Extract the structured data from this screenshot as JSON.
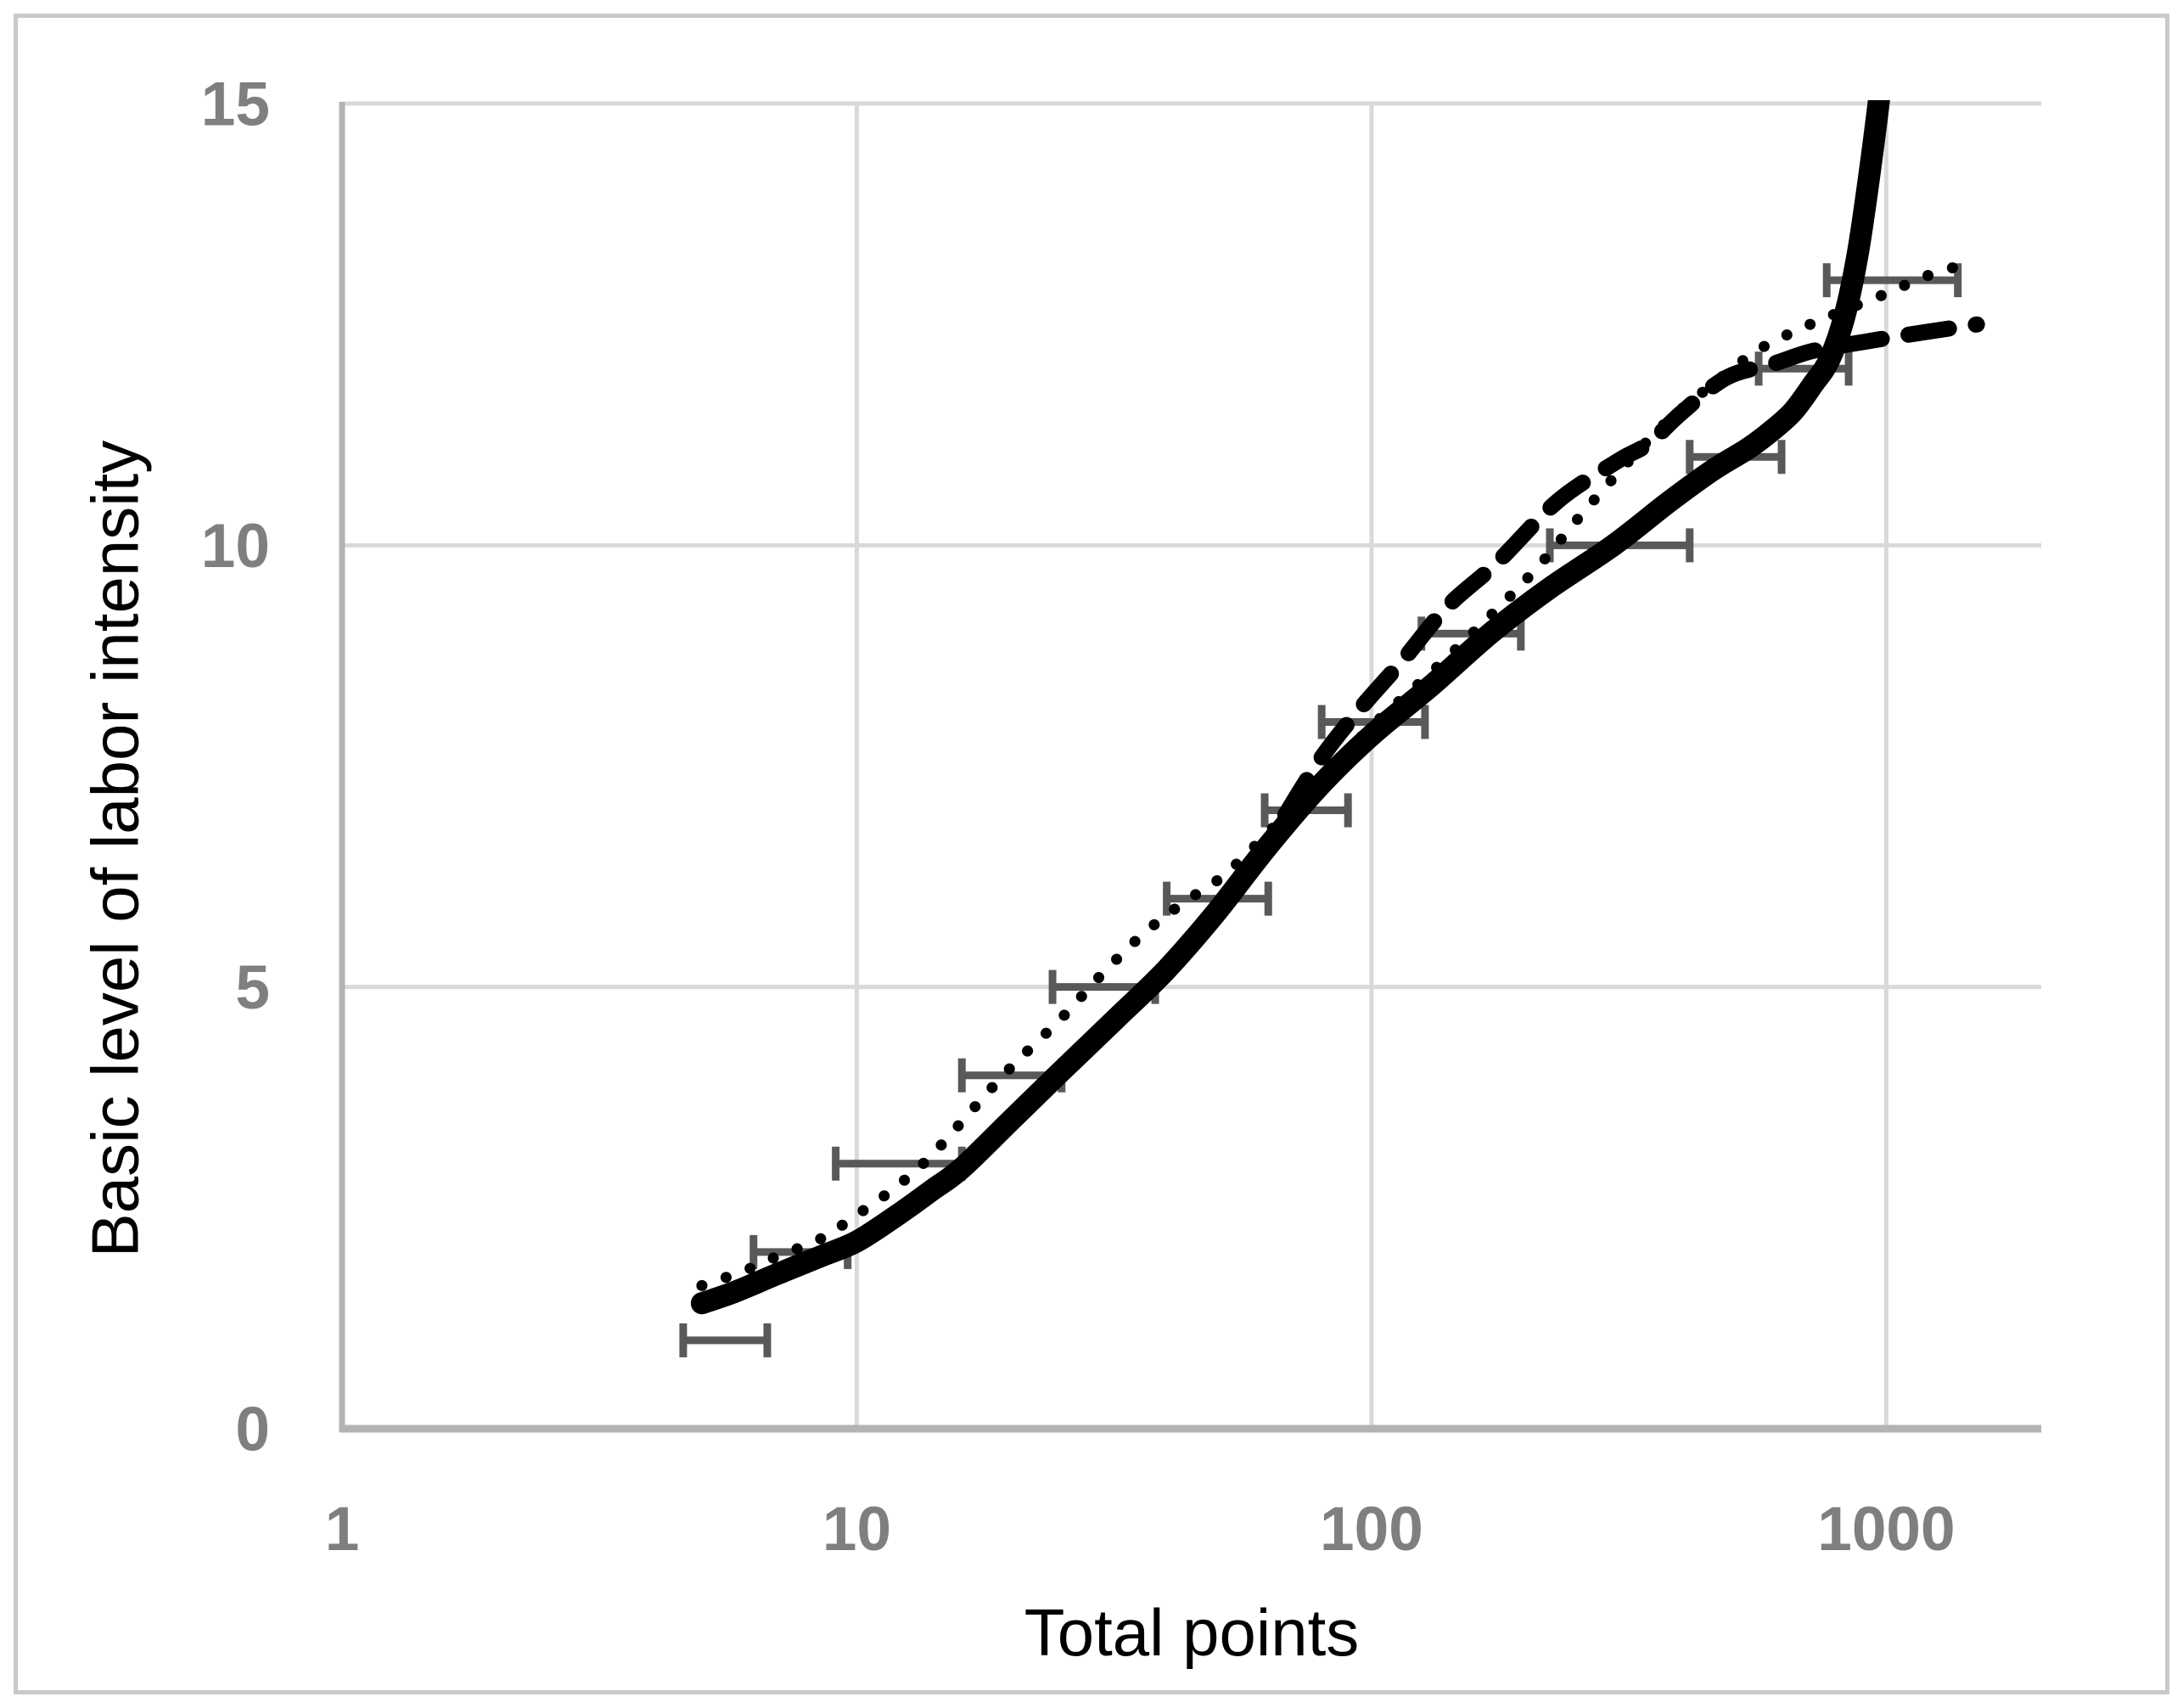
{
  "figure": {
    "background": "#ffffff",
    "frame_color": "#c9c9c9"
  },
  "colors": {
    "gridline": "#d9d9d9",
    "axis_line": "#b3b3b3",
    "tick_label": "#7f7f7f",
    "axis_title": "#000000",
    "error_bar": "#595959",
    "series_line": "#000000"
  },
  "chart_data": {
    "type": "line",
    "title": "",
    "xlabel": "Total points",
    "ylabel": "Basic level of labor intensity",
    "x_axis": {
      "label": "Total points",
      "scale": "log",
      "min": 1,
      "max": 2000,
      "ticks": [
        1,
        10,
        100,
        1000
      ],
      "tick_labels": [
        "1",
        "10",
        "100",
        "1000"
      ]
    },
    "y_axis": {
      "label": "Basic level of labor intensity",
      "scale": "linear",
      "min": 0,
      "max": 15,
      "ticks": [
        0,
        5,
        10,
        15
      ],
      "tick_labels": [
        "0",
        "5",
        "10",
        "15"
      ]
    },
    "grid": true,
    "legend_position": "none",
    "series": [
      {
        "name": "dashed-curve",
        "style": "dashed",
        "color": "#000000",
        "width": 19,
        "points": [
          [
            68,
            6.95
          ],
          [
            80,
            7.6
          ],
          [
            95,
            8.15
          ],
          [
            115,
            8.7
          ],
          [
            140,
            9.3
          ],
          [
            175,
            9.8
          ],
          [
            230,
            10.5
          ],
          [
            300,
            10.95
          ],
          [
            345,
            11.15
          ],
          [
            400,
            11.5
          ],
          [
            490,
            11.9
          ],
          [
            600,
            12.05
          ],
          [
            720,
            12.2
          ],
          [
            900,
            12.3
          ],
          [
            1150,
            12.4
          ],
          [
            1500,
            12.5
          ]
        ]
      },
      {
        "name": "dotted-curve",
        "style": "dotted",
        "color": "#000000",
        "width": 13,
        "points": [
          [
            5,
            1.62
          ],
          [
            6,
            1.78
          ],
          [
            7,
            1.95
          ],
          [
            8.5,
            2.15
          ],
          [
            10,
            2.42
          ],
          [
            12,
            2.75
          ],
          [
            14,
            3.1
          ],
          [
            17,
            3.65
          ],
          [
            20,
            4.1
          ],
          [
            25,
            4.65
          ],
          [
            30,
            5.15
          ],
          [
            36,
            5.6
          ],
          [
            43,
            5.95
          ],
          [
            50,
            6.2
          ],
          [
            56,
            6.45
          ],
          [
            63,
            6.75
          ],
          [
            80,
            7.35
          ],
          [
            100,
            7.95
          ],
          [
            130,
            8.55
          ],
          [
            170,
            9.2
          ],
          [
            210,
            9.75
          ],
          [
            256,
            10.35
          ],
          [
            310,
            10.9
          ],
          [
            375,
            11.4
          ],
          [
            455,
            11.8
          ],
          [
            560,
            12.2
          ],
          [
            680,
            12.45
          ],
          [
            820,
            12.65
          ],
          [
            1000,
            12.85
          ],
          [
            1200,
            13.05
          ],
          [
            1500,
            13.22
          ]
        ]
      },
      {
        "name": "solid-thick-curve",
        "style": "solid",
        "color": "#000000",
        "width": 26,
        "points": [
          [
            5,
            1.42
          ],
          [
            5.8,
            1.55
          ],
          [
            7,
            1.75
          ],
          [
            8.5,
            1.95
          ],
          [
            10,
            2.12
          ],
          [
            12,
            2.42
          ],
          [
            14,
            2.7
          ],
          [
            16,
            2.95
          ],
          [
            20,
            3.5
          ],
          [
            25,
            4.05
          ],
          [
            32,
            4.65
          ],
          [
            40,
            5.2
          ],
          [
            50,
            5.85
          ],
          [
            63,
            6.6
          ],
          [
            80,
            7.3
          ],
          [
            100,
            7.85
          ],
          [
            130,
            8.4
          ],
          [
            170,
            9.0
          ],
          [
            220,
            9.5
          ],
          [
            295,
            10.0
          ],
          [
            380,
            10.5
          ],
          [
            460,
            10.85
          ],
          [
            540,
            11.1
          ],
          [
            600,
            11.3
          ],
          [
            660,
            11.52
          ],
          [
            720,
            11.82
          ],
          [
            775,
            12.1
          ],
          [
            830,
            12.6
          ],
          [
            880,
            13.3
          ],
          [
            930,
            14.25
          ],
          [
            975,
            15.2
          ],
          [
            1000,
            15.8
          ]
        ]
      }
    ],
    "error_bars": {
      "orientation": "horizontal",
      "color": "#595959",
      "items": [
        {
          "level": 1,
          "x_min": 4.6,
          "x_max": 6.7
        },
        {
          "level": 2,
          "x_min": 6.3,
          "x_max": 9.6
        },
        {
          "level": 3,
          "x_min": 9.1,
          "x_max": 16
        },
        {
          "level": 4,
          "x_min": 16,
          "x_max": 25
        },
        {
          "level": 5,
          "x_min": 24,
          "x_max": 38
        },
        {
          "level": 6,
          "x_min": 40,
          "x_max": 63
        },
        {
          "level": 7,
          "x_min": 62,
          "x_max": 90
        },
        {
          "level": 8,
          "x_min": 80,
          "x_max": 127
        },
        {
          "level": 9,
          "x_min": 125,
          "x_max": 195
        },
        {
          "level": 10,
          "x_min": 222,
          "x_max": 415
        },
        {
          "level": 11,
          "x_min": 415,
          "x_max": 626
        },
        {
          "level": 12,
          "x_min": 565,
          "x_max": 845
        },
        {
          "level": 13,
          "x_min": 766,
          "x_max": 1377
        }
      ]
    }
  }
}
